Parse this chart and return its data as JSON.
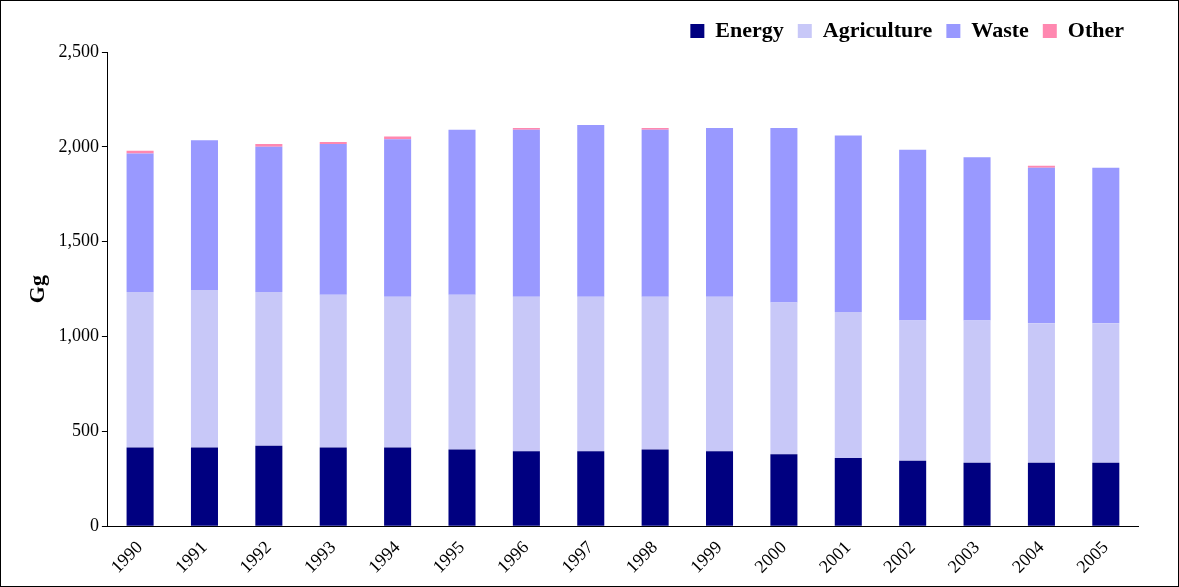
{
  "chart_data": {
    "type": "bar",
    "stacked": true,
    "ylabel": "Gg",
    "categories": [
      "1990",
      "1991",
      "1992",
      "1993",
      "1994",
      "1995",
      "1996",
      "1997",
      "1998",
      "1999",
      "2000",
      "2001",
      "2002",
      "2003",
      "2004",
      "2005"
    ],
    "series": [
      {
        "name": "Energy",
        "color": "#000080",
        "values": [
          415,
          415,
          425,
          415,
          415,
          405,
          395,
          395,
          405,
          395,
          380,
          360,
          345,
          335,
          335,
          335
        ]
      },
      {
        "name": "Agriculture",
        "color": "#c8c8f8",
        "values": [
          820,
          830,
          810,
          805,
          795,
          815,
          815,
          815,
          805,
          815,
          800,
          770,
          740,
          750,
          735,
          735
        ]
      },
      {
        "name": "Waste",
        "color": "#9999ff",
        "values": [
          730,
          790,
          765,
          795,
          830,
          870,
          880,
          905,
          880,
          890,
          920,
          930,
          900,
          860,
          820,
          820
        ]
      },
      {
        "name": "Other",
        "color": "#ff88b0",
        "values": [
          15,
          0,
          15,
          10,
          15,
          0,
          10,
          0,
          10,
          0,
          0,
          0,
          0,
          0,
          10,
          0
        ]
      }
    ],
    "ylim": [
      0,
      2500
    ],
    "yticks": [
      0,
      500,
      {
        "value": 1000,
        "label": "1,000"
      },
      {
        "value": 1500,
        "label": "1,500"
      },
      {
        "value": 2000,
        "label": "2,000"
      },
      {
        "value": 2500,
        "label": "2,500"
      }
    ],
    "grid": false,
    "legend": "top right"
  }
}
